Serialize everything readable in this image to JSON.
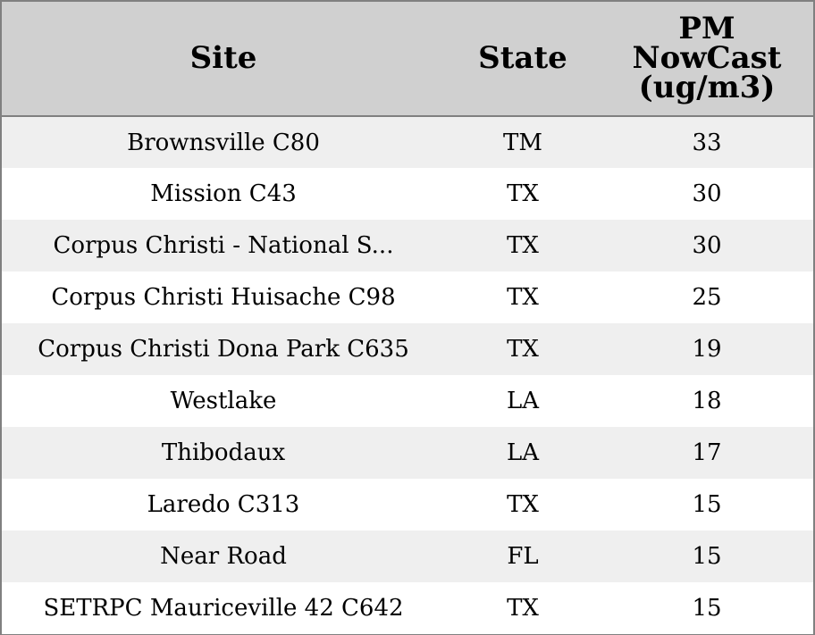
{
  "chart_data": {
    "type": "table",
    "columns": [
      "Site",
      "State",
      "PM NowCast (ug/m3)"
    ],
    "header_lines": {
      "site": [
        "Site"
      ],
      "state": [
        "State"
      ],
      "pm": [
        "PM",
        "NowCast",
        "(ug/m3)"
      ]
    },
    "rows": [
      {
        "site": "Brownsville C80",
        "state": "TM",
        "pm": "33"
      },
      {
        "site": "Mission C43",
        "state": "TX",
        "pm": "30"
      },
      {
        "site": "Corpus Christi - National S...",
        "state": "TX",
        "pm": "30"
      },
      {
        "site": "Corpus Christi Huisache C98",
        "state": "TX",
        "pm": "25"
      },
      {
        "site": "Corpus Christi Dona Park C635",
        "state": "TX",
        "pm": "19"
      },
      {
        "site": "Westlake",
        "state": "LA",
        "pm": "18"
      },
      {
        "site": "Thibodaux",
        "state": "LA",
        "pm": "17"
      },
      {
        "site": "Laredo C313",
        "state": "TX",
        "pm": "15"
      },
      {
        "site": "Near Road",
        "state": "FL",
        "pm": "15"
      },
      {
        "site": "SETRPC Mauriceville 42 C642",
        "state": "TX",
        "pm": "15"
      }
    ],
    "colors": {
      "header_bg": "#d0d0d0",
      "odd_row_bg": "#efefef",
      "even_row_bg": "#ffffff",
      "border": "#808080"
    }
  }
}
